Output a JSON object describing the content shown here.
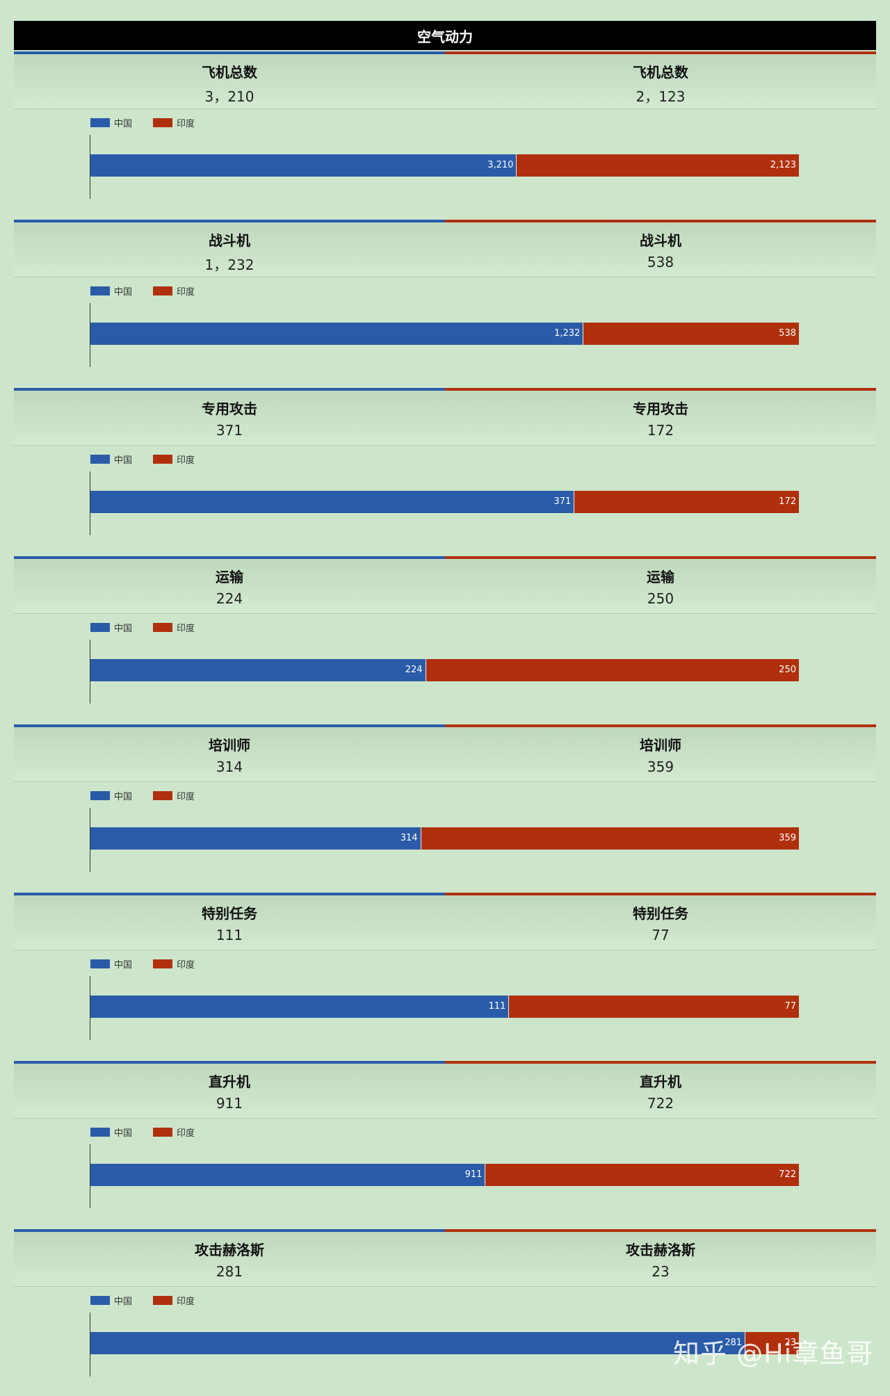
{
  "page": {
    "title": "空气动力"
  },
  "colors": {
    "china": "#2a5ba8",
    "india": "#b0300e"
  },
  "legend": {
    "china": "中国",
    "india": "印度"
  },
  "sections": [
    {
      "left": {
        "label": "飞机总数",
        "value": "3，210"
      },
      "right": {
        "label": "飞机总数",
        "value": "2，123"
      }
    },
    {
      "left": {
        "label": "战斗机",
        "value": "1，232"
      },
      "right": {
        "label": "战斗机",
        "value": "538"
      }
    },
    {
      "left": {
        "label": "专用攻击",
        "value": "371"
      },
      "right": {
        "label": "专用攻击",
        "value": "172"
      }
    },
    {
      "left": {
        "label": "运输",
        "value": "224"
      },
      "right": {
        "label": "运输",
        "value": "250"
      }
    },
    {
      "left": {
        "label": "培训师",
        "value": "314"
      },
      "right": {
        "label": "培训师",
        "value": "359"
      }
    },
    {
      "left": {
        "label": "特别任务",
        "value": "111"
      },
      "right": {
        "label": "特别任务",
        "value": "77"
      }
    },
    {
      "left": {
        "label": "直升机",
        "value": "911"
      },
      "right": {
        "label": "直升机",
        "value": "722"
      }
    },
    {
      "left": {
        "label": "攻击赫洛斯",
        "value": "281"
      },
      "right": {
        "label": "攻击赫洛斯",
        "value": "23"
      }
    }
  ],
  "chart_data": [
    {
      "type": "bar",
      "stacked": true,
      "normalized": true,
      "orientation": "horizontal",
      "series": [
        {
          "name": "中国",
          "values": [
            3210
          ],
          "labels": [
            "3,210"
          ]
        },
        {
          "name": "印度",
          "values": [
            2123
          ],
          "labels": [
            "2,123"
          ]
        }
      ]
    },
    {
      "type": "bar",
      "stacked": true,
      "normalized": true,
      "orientation": "horizontal",
      "series": [
        {
          "name": "中国",
          "values": [
            1232
          ],
          "labels": [
            "1,232"
          ]
        },
        {
          "name": "印度",
          "values": [
            538
          ],
          "labels": [
            "538"
          ]
        }
      ]
    },
    {
      "type": "bar",
      "stacked": true,
      "normalized": true,
      "orientation": "horizontal",
      "series": [
        {
          "name": "中国",
          "values": [
            371
          ],
          "labels": [
            "371"
          ]
        },
        {
          "name": "印度",
          "values": [
            172
          ],
          "labels": [
            "172"
          ]
        }
      ]
    },
    {
      "type": "bar",
      "stacked": true,
      "normalized": true,
      "orientation": "horizontal",
      "series": [
        {
          "name": "中国",
          "values": [
            224
          ],
          "labels": [
            "224"
          ]
        },
        {
          "name": "印度",
          "values": [
            250
          ],
          "labels": [
            "250"
          ]
        }
      ]
    },
    {
      "type": "bar",
      "stacked": true,
      "normalized": true,
      "orientation": "horizontal",
      "series": [
        {
          "name": "中国",
          "values": [
            314
          ],
          "labels": [
            "314"
          ]
        },
        {
          "name": "印度",
          "values": [
            359
          ],
          "labels": [
            "359"
          ]
        }
      ]
    },
    {
      "type": "bar",
      "stacked": true,
      "normalized": true,
      "orientation": "horizontal",
      "series": [
        {
          "name": "中国",
          "values": [
            111
          ],
          "labels": [
            "111"
          ]
        },
        {
          "name": "印度",
          "values": [
            77
          ],
          "labels": [
            "77"
          ]
        }
      ]
    },
    {
      "type": "bar",
      "stacked": true,
      "normalized": true,
      "orientation": "horizontal",
      "series": [
        {
          "name": "中国",
          "values": [
            911
          ],
          "labels": [
            "911"
          ]
        },
        {
          "name": "印度",
          "values": [
            722
          ],
          "labels": [
            "722"
          ]
        }
      ]
    },
    {
      "type": "bar",
      "stacked": true,
      "normalized": true,
      "orientation": "horizontal",
      "series": [
        {
          "name": "中国",
          "values": [
            281
          ],
          "labels": [
            "281"
          ]
        },
        {
          "name": "印度",
          "values": [
            23
          ],
          "labels": [
            "23"
          ]
        }
      ]
    }
  ],
  "watermark": "知乎 @Hi章鱼哥"
}
